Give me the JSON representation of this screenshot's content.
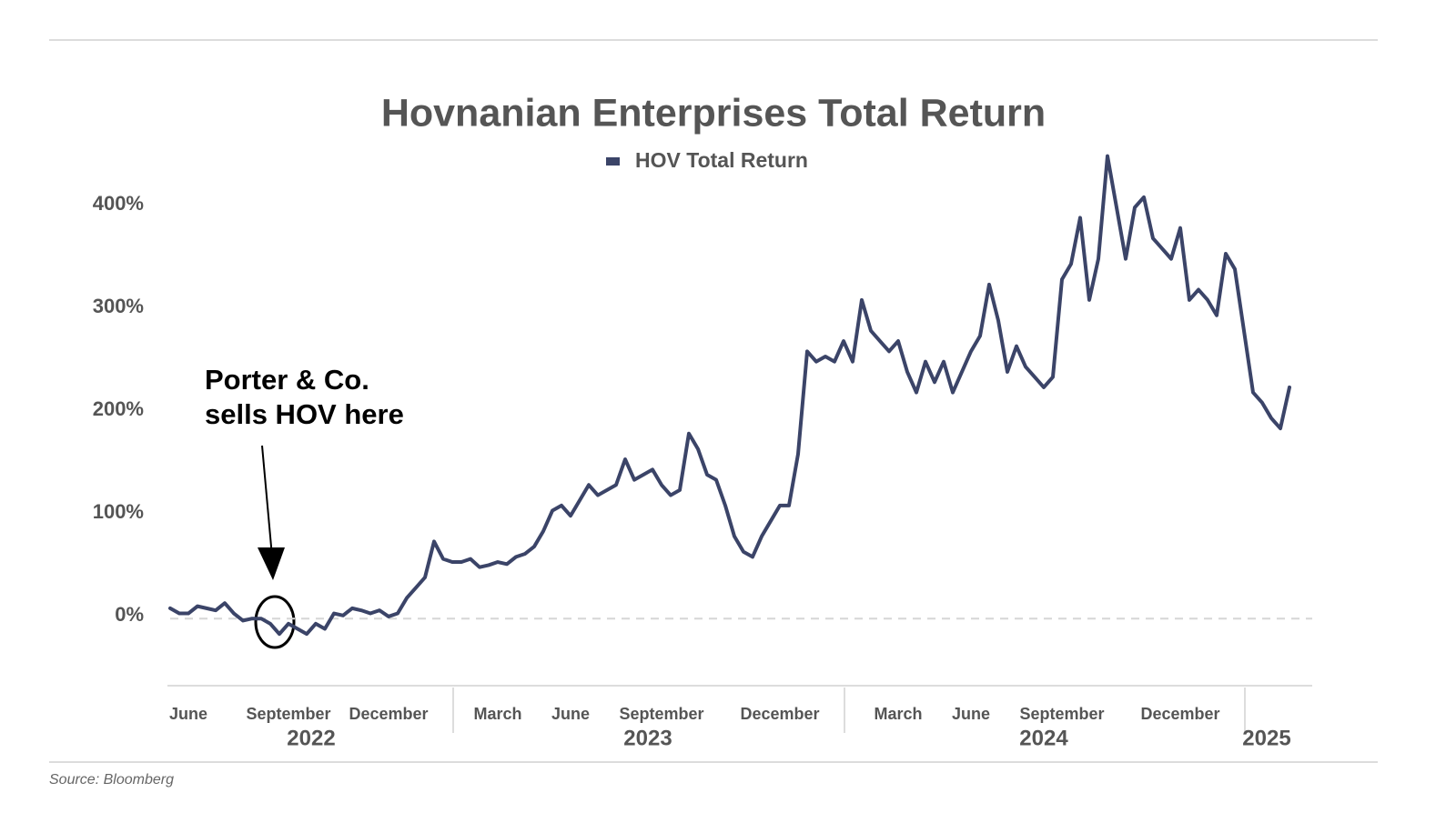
{
  "chart_data": {
    "type": "line",
    "title": "Hovnanian Enterprises Total Return",
    "source": "Source: Bloomberg",
    "annotation": [
      "Porter & Co.",
      "sells HOV here"
    ],
    "legend": "top",
    "zero_line": true,
    "categories": [
      null,
      null,
      "June",
      null,
      null,
      null,
      null,
      null,
      null,
      null,
      null,
      null,
      null,
      "September",
      null,
      null,
      null,
      null,
      null,
      null,
      null,
      null,
      null,
      null,
      "December",
      null,
      null,
      null,
      null,
      null,
      null,
      null,
      null,
      null,
      null,
      null,
      "March",
      null,
      null,
      null,
      null,
      null,
      null,
      null,
      "June",
      null,
      null,
      null,
      null,
      null,
      null,
      null,
      null,
      null,
      "September",
      null,
      null,
      null,
      null,
      null,
      null,
      null,
      null,
      null,
      null,
      null,
      null,
      "December",
      null,
      null,
      null,
      null,
      null,
      null,
      null,
      null,
      null,
      null,
      null,
      null,
      "March",
      null,
      null,
      null,
      null,
      null,
      null,
      null,
      "June",
      null,
      null,
      null,
      null,
      null,
      null,
      null,
      null,
      null,
      "September",
      null,
      null,
      null,
      null,
      null,
      null,
      null,
      null,
      null,
      null,
      null,
      null,
      "December",
      null,
      null,
      null,
      null,
      null,
      null,
      null,
      null,
      null,
      null,
      null,
      null
    ],
    "year_groups": [
      {
        "label": "2022",
        "start": 0,
        "end": 31
      },
      {
        "label": "2023",
        "start": 31,
        "end": 74
      },
      {
        "label": "2024",
        "start": 74,
        "end": 118
      },
      {
        "label": "2025",
        "start": 118,
        "end": 123
      }
    ],
    "series": [
      {
        "name": "HOV Total Return",
        "color": "#3b4468",
        "values": [
          10,
          5,
          5,
          12,
          10,
          8,
          15,
          5,
          -2,
          0,
          0,
          -5,
          -15,
          -5,
          -10,
          -15,
          -5,
          -10,
          5,
          3,
          10,
          8,
          5,
          8,
          2,
          5,
          20,
          30,
          40,
          75,
          58,
          55,
          55,
          58,
          50,
          52,
          55,
          53,
          60,
          63,
          70,
          85,
          105,
          110,
          100,
          115,
          130,
          120,
          125,
          130,
          155,
          135,
          140,
          145,
          130,
          120,
          125,
          180,
          165,
          140,
          135,
          110,
          80,
          65,
          60,
          80,
          95,
          110,
          110,
          160,
          260,
          250,
          255,
          250,
          270,
          250,
          310,
          280,
          270,
          260,
          270,
          240,
          220,
          250,
          230,
          250,
          220,
          240,
          260,
          275,
          325,
          290,
          240,
          265,
          245,
          235,
          225,
          235,
          330,
          345,
          390,
          310,
          350,
          450,
          400,
          350,
          400,
          410,
          370,
          360,
          350,
          380,
          310,
          320,
          310,
          295,
          355,
          340,
          280,
          220,
          210,
          195,
          185,
          225
        ]
      }
    ],
    "ylim": [
      -60,
      470
    ],
    "yticks": [
      {
        "value": 0,
        "label": "0%"
      },
      {
        "value": 100,
        "label": "100%"
      },
      {
        "value": 200,
        "label": "200%"
      },
      {
        "value": 300,
        "label": "300%"
      },
      {
        "value": 400,
        "label": "400%"
      }
    ]
  }
}
